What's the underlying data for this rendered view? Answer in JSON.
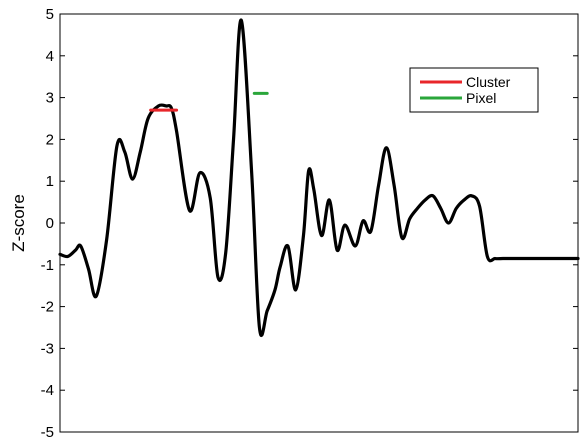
{
  "chart_data": {
    "type": "line",
    "title": "",
    "xlabel": "",
    "ylabel": "Z-score",
    "ylim": [
      -5,
      5
    ],
    "xlim": [
      0,
      100
    ],
    "yticks": [
      "-5",
      "-4",
      "-3",
      "-2",
      "-1",
      "0",
      "1",
      "2",
      "3",
      "4",
      "5"
    ],
    "grid": false,
    "legend_position": "top-right",
    "series": [
      {
        "color": "#000000",
        "x": [
          0,
          1.5,
          3,
          4,
          5.5,
          7,
          9,
          11,
          12.5,
          14,
          15.5,
          17,
          19,
          20.5,
          21.5,
          22.5,
          25,
          27,
          29,
          30.5,
          32,
          33.5,
          35,
          37,
          38.5,
          40,
          41.5,
          42.5,
          44,
          45.5,
          47,
          48,
          49,
          50.5,
          52,
          53.5,
          55,
          57,
          58.5,
          60,
          61.5,
          63,
          64.5,
          66,
          67.5,
          69,
          70.5,
          72,
          73.5,
          75,
          76.5,
          78,
          79.5,
          81,
          82.5,
          84,
          85.5,
          87,
          88.5,
          90,
          91.5,
          93,
          94.5,
          96,
          97.5,
          99,
          100
        ],
        "y": [
          -0.75,
          -0.8,
          -0.65,
          -0.55,
          -1.1,
          -1.75,
          -0.4,
          1.85,
          1.7,
          1.05,
          1.7,
          2.5,
          2.8,
          2.8,
          2.75,
          2.2,
          0.3,
          1.2,
          0.6,
          -1.3,
          -0.7,
          2.0,
          4.85,
          1.2,
          -2.5,
          -2.1,
          -1.6,
          -1.05,
          -0.55,
          -1.6,
          -0.3,
          1.25,
          0.8,
          -0.3,
          0.55,
          -0.65,
          -0.05,
          -0.55,
          0.05,
          -0.2,
          0.9,
          1.8,
          0.9,
          -0.35,
          0.1,
          0.35,
          0.55,
          0.65,
          0.35,
          0.0,
          0.35,
          0.55,
          0.65,
          0.4,
          -0.8,
          -0.85,
          -0.85,
          -0.85,
          -0.85,
          -0.85,
          -0.85,
          -0.85,
          -0.85,
          -0.85,
          -0.85,
          -0.85,
          -0.85
        ]
      },
      {
        "name": "Cluster",
        "color": "#e8262a",
        "x": [
          17.5,
          22.5
        ],
        "y": [
          2.7,
          2.7
        ]
      },
      {
        "name": "Pixel",
        "color": "#2aa63a",
        "x": [
          37.5,
          40
        ],
        "y": [
          3.1,
          3.1
        ]
      }
    ]
  }
}
